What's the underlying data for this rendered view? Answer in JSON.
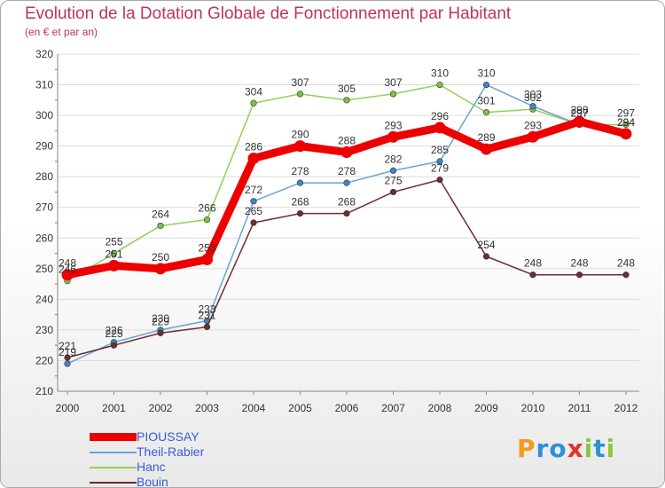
{
  "title": "Evolution de la Dotation Globale de Fonctionnement par Habitant",
  "subtitle": "(en € et par an)",
  "logo": {
    "text": "Proxiti",
    "letters": [
      {
        "char": "P",
        "color": "#f39a1b"
      },
      {
        "char": "r",
        "color": "#2f8fd6"
      },
      {
        "char": "o",
        "color": "#2f8fd6"
      },
      {
        "char": "x",
        "color": "#e2322b"
      },
      {
        "char": "i",
        "color": "#8cc63f"
      },
      {
        "char": "t",
        "color": "#2f8fd6"
      },
      {
        "char": "i",
        "color": "#8cc63f"
      }
    ]
  },
  "chart_data": {
    "type": "line",
    "title": "Evolution de la Dotation Globale de Fonctionnement par Habitant",
    "subtitle": "(en € et par an)",
    "xlabel": "",
    "ylabel": "",
    "categories": [
      "2000",
      "2001",
      "2002",
      "2003",
      "2004",
      "2005",
      "2006",
      "2007",
      "2008",
      "2009",
      "2010",
      "2011",
      "2012"
    ],
    "ylim": [
      210,
      320
    ],
    "yticks": [
      210,
      220,
      230,
      240,
      250,
      260,
      270,
      280,
      290,
      300,
      310,
      320
    ],
    "grid": true,
    "legend_position": "bottom-left",
    "series": [
      {
        "name": "Hanc",
        "color": "#8fd256",
        "marker_color": "#7ec142",
        "values": [
          246,
          255,
          264,
          266,
          304,
          307,
          305,
          307,
          310,
          301,
          302,
          297,
          297
        ],
        "labels": [
          "246",
          "255",
          "264",
          "266",
          "304",
          "307",
          "305",
          "307",
          "310",
          "301",
          "302",
          "297",
          "297"
        ]
      },
      {
        "name": "Theil-Rabier",
        "color": "#6aa4d6",
        "marker_color": "#3e85c8",
        "values": [
          219,
          226,
          230,
          233,
          272,
          278,
          278,
          282,
          285,
          310,
          303,
          297,
          294
        ],
        "labels": [
          "219",
          "226",
          "230",
          "233",
          "272",
          "278",
          "278",
          "282",
          "285",
          "310",
          "303",
          "297",
          "294"
        ]
      },
      {
        "name": "Bouin",
        "color": "#6e2e2e",
        "marker_color": "#6e2e2e",
        "values": [
          221,
          225,
          229,
          231,
          265,
          268,
          268,
          275,
          279,
          254,
          248,
          248,
          248
        ],
        "labels": [
          "221",
          "225",
          "229",
          "231",
          "265",
          "268",
          "268",
          "275",
          "279",
          "254",
          "248",
          "248",
          "248"
        ]
      },
      {
        "name": "PIOUSSAY",
        "color": "#ee0000",
        "marker_color": "#ee0000",
        "thick": true,
        "values": [
          248,
          251,
          250,
          253,
          286,
          290,
          288,
          293,
          296,
          289,
          293,
          298,
          294
        ],
        "labels": [
          "248",
          "251",
          "250",
          "253",
          "286",
          "290",
          "288",
          "293",
          "296",
          "289",
          "293",
          "298",
          "294"
        ]
      }
    ],
    "legend_order": [
      "PIOUSSAY",
      "Theil-Rabier",
      "Hanc",
      "Bouin"
    ]
  }
}
